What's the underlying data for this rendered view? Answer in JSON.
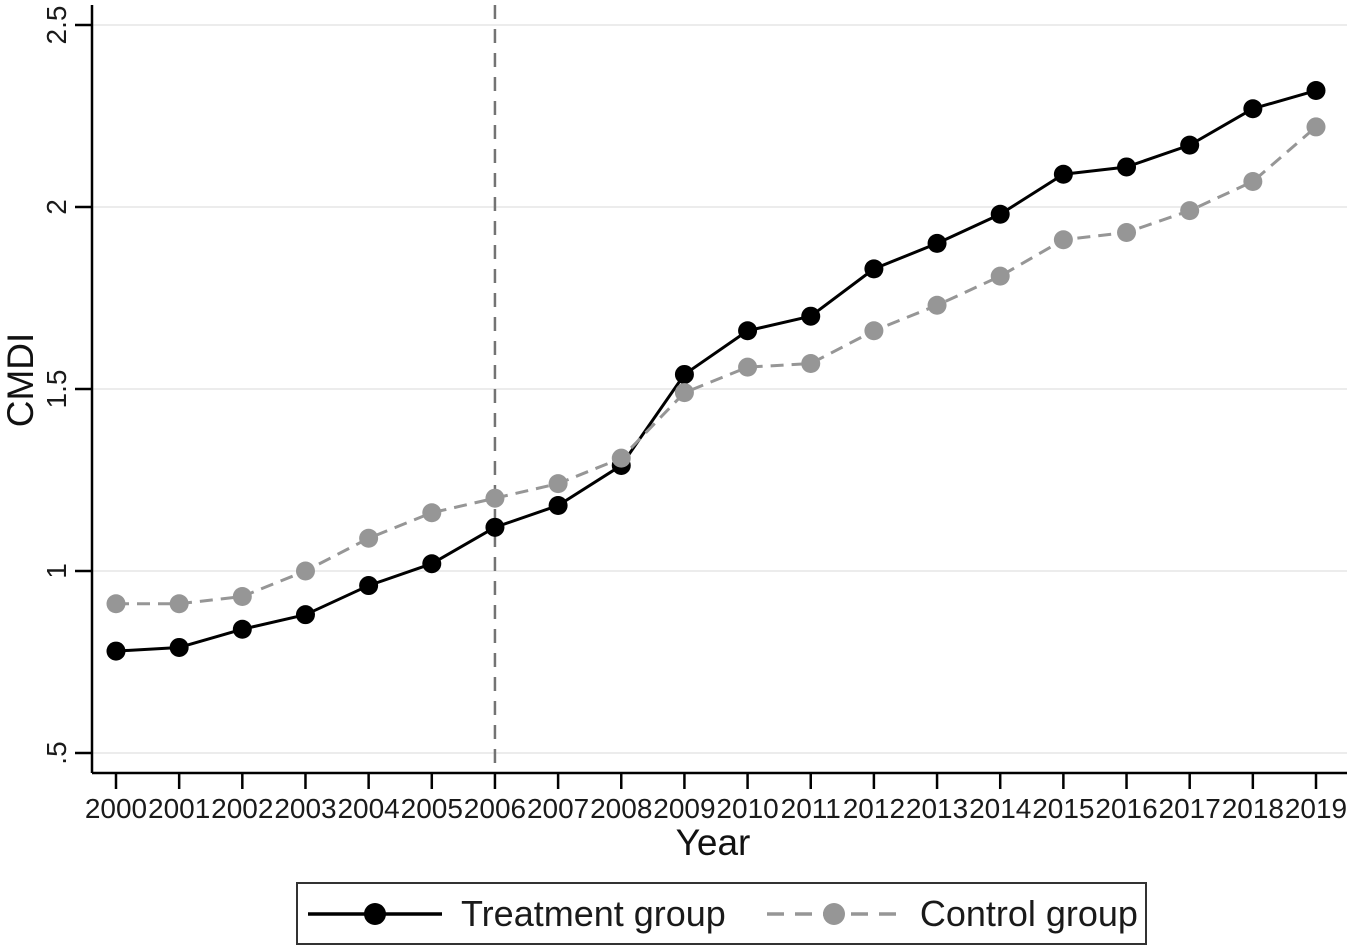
{
  "chart_data": {
    "type": "line",
    "title": "",
    "xlabel": "Year",
    "ylabel": "CMDI",
    "x": [
      2000,
      2001,
      2002,
      2003,
      2004,
      2005,
      2006,
      2007,
      2008,
      2009,
      2010,
      2011,
      2012,
      2013,
      2014,
      2015,
      2016,
      2017,
      2018,
      2019
    ],
    "xtick_labels": [
      "2000",
      "2001",
      "2002",
      "2003",
      "2004",
      "2005",
      "2006",
      "2007",
      "2008",
      "2009",
      "2010",
      "2011",
      "2012",
      "2013",
      "2014",
      "2015",
      "2016",
      "2017",
      "2018",
      "2019"
    ],
    "yticks": [
      0.5,
      1,
      1.5,
      2,
      2.5
    ],
    "ytick_labels": [
      ".5",
      "1",
      "1.5",
      "2",
      "2.5"
    ],
    "ylim": [
      0.45,
      2.55
    ],
    "grid": "horizontal-only",
    "gridline_color": "#e6e6e6",
    "axis_color": "#000000",
    "tick_label_rotation_y": -90,
    "legend_position": "bottom-center-boxed",
    "reference_line": {
      "x": 2006,
      "orientation": "vertical",
      "style": "dashed",
      "color": "#737373"
    },
    "series": [
      {
        "name": "Treatment group",
        "color": "#000000",
        "line_style": "solid",
        "marker": "filled-circle",
        "values": [
          0.78,
          0.79,
          0.84,
          0.88,
          0.96,
          1.02,
          1.12,
          1.18,
          1.29,
          1.54,
          1.66,
          1.7,
          1.83,
          1.9,
          1.98,
          2.09,
          2.11,
          2.17,
          2.27,
          2.32
        ]
      },
      {
        "name": "Control group",
        "color": "#969696",
        "line_style": "dashed",
        "marker": "filled-circle",
        "values": [
          0.91,
          0.91,
          0.93,
          1.0,
          1.09,
          1.16,
          1.2,
          1.24,
          1.31,
          1.49,
          1.56,
          1.57,
          1.66,
          1.73,
          1.81,
          1.91,
          1.93,
          1.99,
          2.07,
          2.22
        ]
      }
    ]
  }
}
